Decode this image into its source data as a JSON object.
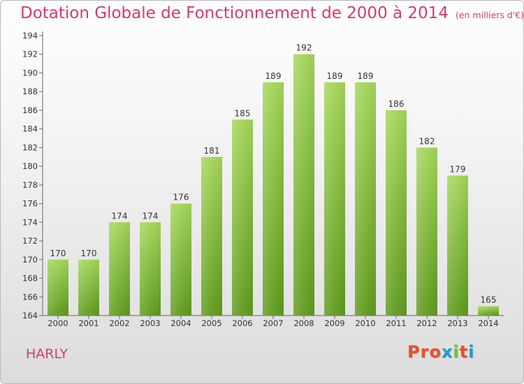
{
  "header": {
    "title": "Dotation Globale de Fonctionnement de 2000 à 2014",
    "subtitle": "(en milliers d'€)"
  },
  "footer": {
    "place": "HARLY",
    "logo_text": "Proxiti"
  },
  "colors": {
    "title": "#d63a6e",
    "bar_top": "#a4d65a",
    "bar_bottom": "#5f9a1e",
    "logo_letters": [
      "#e8502c",
      "#e8502c",
      "#e8502c",
      "#1f9ad6",
      "#7cba2a",
      "#e8502c",
      "#1f9ad6"
    ]
  },
  "chart_data": {
    "type": "bar",
    "categories": [
      "2000",
      "2001",
      "2002",
      "2003",
      "2004",
      "2005",
      "2006",
      "2007",
      "2008",
      "2009",
      "2010",
      "2011",
      "2012",
      "2013",
      "2014"
    ],
    "values": [
      170,
      170,
      174,
      174,
      176,
      181,
      185,
      189,
      192,
      189,
      189,
      186,
      182,
      179,
      165
    ],
    "ylim": [
      164,
      194
    ],
    "yticks": [
      164,
      166,
      168,
      170,
      172,
      174,
      176,
      178,
      180,
      182,
      184,
      186,
      188,
      190,
      192,
      194
    ],
    "title": "Dotation Globale de Fonctionnement de 2000 à 2014",
    "xlabel": "",
    "ylabel": "",
    "grid": false,
    "data_labels": true
  }
}
